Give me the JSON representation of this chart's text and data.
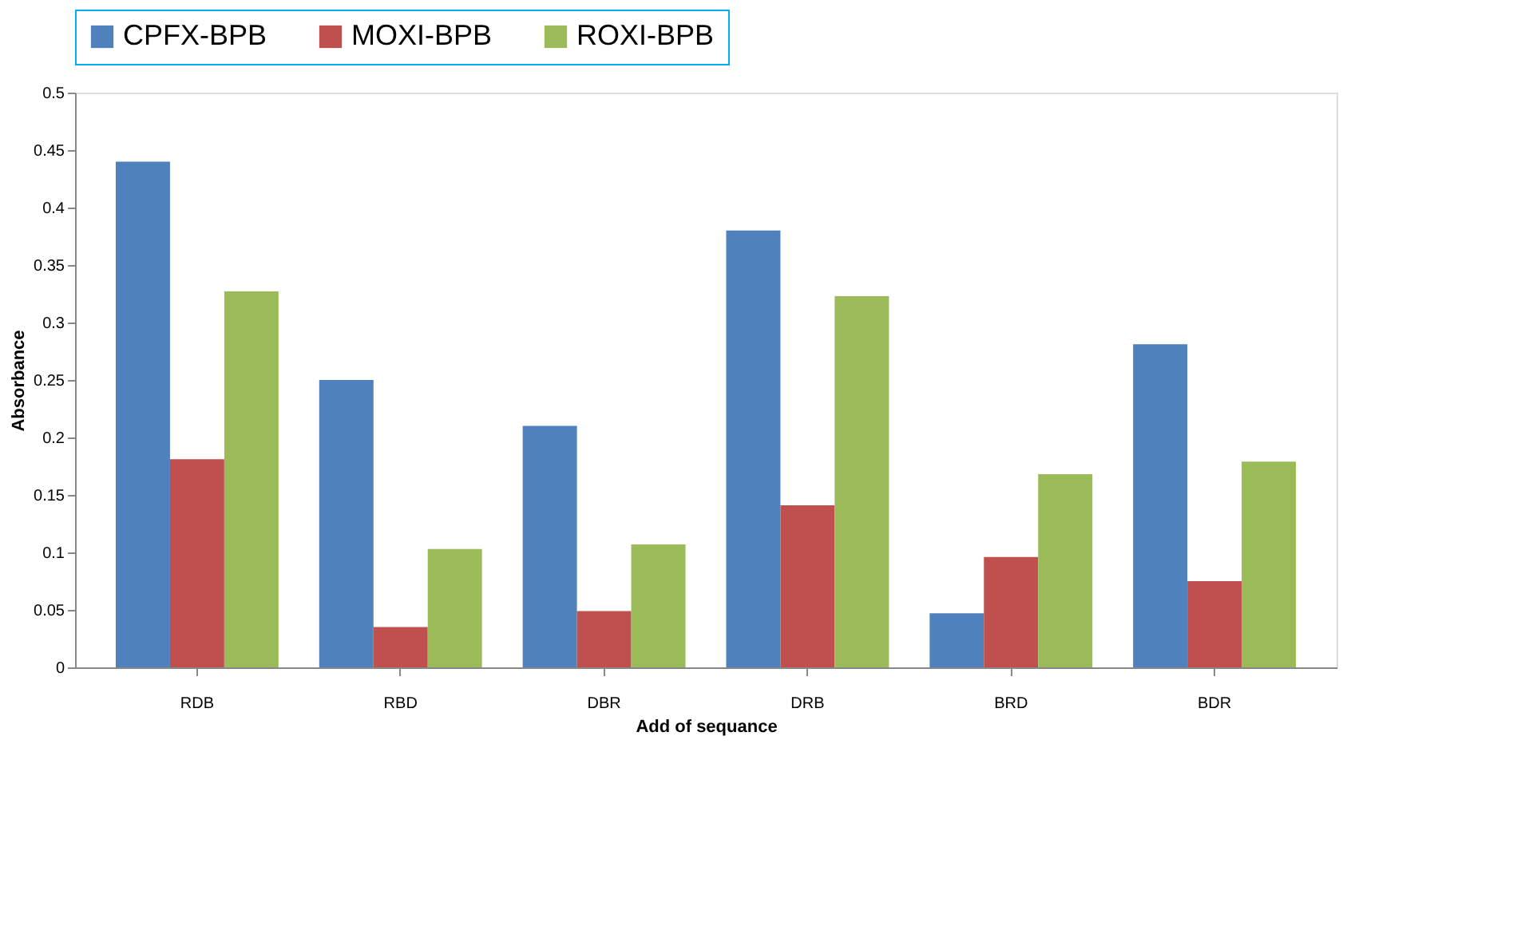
{
  "chart_data": {
    "type": "bar",
    "xlabel": "Add of sequance",
    "ylabel": "Absorbance",
    "categories": [
      "RDB",
      "RBD",
      "DBR",
      "DRB",
      "BRD",
      "BDR"
    ],
    "series": [
      {
        "name": "CPFX-BPB",
        "color": "#4f81bd",
        "values": [
          0.44,
          0.25,
          0.21,
          0.38,
          0.047,
          0.281
        ]
      },
      {
        "name": "MOXI-BPB",
        "color": "#c0504d",
        "values": [
          0.181,
          0.035,
          0.049,
          0.141,
          0.096,
          0.075
        ]
      },
      {
        "name": "ROXI-BPB",
        "color": "#9bbb59",
        "values": [
          0.327,
          0.103,
          0.107,
          0.323,
          0.168,
          0.179
        ]
      }
    ],
    "ylim": [
      0,
      0.5
    ],
    "yticks": [
      0,
      0.05,
      0.1,
      0.15,
      0.2,
      0.25,
      0.3,
      0.35,
      0.4,
      0.45,
      0.5
    ],
    "grid": false,
    "legend": "top"
  }
}
